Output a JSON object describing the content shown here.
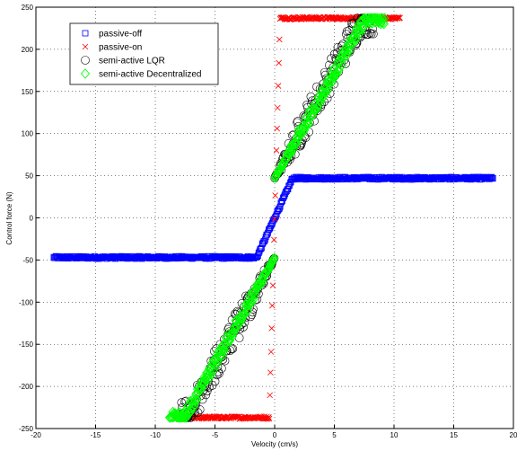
{
  "chart_data": {
    "type": "scatter",
    "title": "",
    "xlabel": "Velocity (cm/s)",
    "ylabel": "Control force (N)",
    "xlim": [
      -20,
      20
    ],
    "ylim": [
      -250,
      250
    ],
    "xticks": [
      -20,
      -15,
      -10,
      -5,
      0,
      5,
      10,
      15,
      20
    ],
    "yticks": [
      -250,
      -200,
      -150,
      -100,
      -50,
      0,
      50,
      100,
      150,
      200,
      250
    ],
    "grid": true,
    "legend_position": "top-left",
    "series": [
      {
        "name": "passive-off",
        "marker": "square",
        "color": "#0000ff",
        "shape": {
          "type": "bilinear",
          "x_range": [
            -18.5,
            18.3
          ],
          "saturation": 47,
          "knee_x": 1.5,
          "step": 0.06,
          "jitter": 1.5
        }
      },
      {
        "name": "passive-on",
        "marker": "x",
        "color": "#ff0000",
        "shape": {
          "type": "bilinear",
          "x_range": [
            -7.2,
            10.5
          ],
          "saturation": 237,
          "knee_x": 0.45,
          "step": 0.05,
          "jitter": 1.5
        }
      },
      {
        "name": "semi-active LQR",
        "marker": "circle",
        "color": "#000000",
        "shape": {
          "type": "band",
          "x_range": [
            -7.8,
            8.4
          ],
          "min_force": 47,
          "slope": 26,
          "max_force": 237,
          "step": 0.055,
          "jitter": 20
        }
      },
      {
        "name": "semi-active Decentralized",
        "marker": "diamond",
        "color": "#00ff00",
        "shape": {
          "type": "band",
          "x_range": [
            -8.8,
            9.2
          ],
          "min_force": 47,
          "slope": 25,
          "max_force": 237,
          "step": 0.045,
          "jitter": 7
        }
      }
    ]
  }
}
